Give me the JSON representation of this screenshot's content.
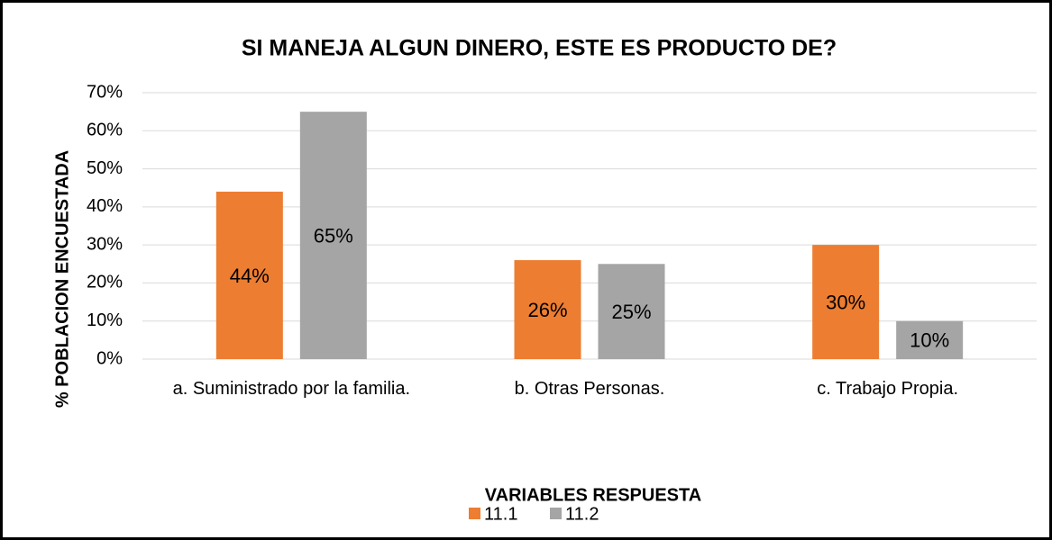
{
  "chart_data": {
    "type": "bar",
    "title": "SI MANEJA ALGUN DINERO, ESTE ES PRODUCTO DE?",
    "x_label": "VARIABLES RESPUESTA",
    "y_label": "% POBLACION ENCUESTADA",
    "categories": [
      "a. Suministrado por la familia.",
      "b. Otras Personas.",
      "c. Trabajo Propia."
    ],
    "series": [
      {
        "name": "11.1",
        "color": "#ED7D31",
        "values": [
          44,
          26,
          30
        ],
        "value_labels": [
          "44%",
          "26%",
          "30%"
        ]
      },
      {
        "name": "11.2",
        "color": "#A5A5A5",
        "values": [
          65,
          25,
          10
        ],
        "value_labels": [
          "65%",
          "25%",
          "10%"
        ]
      }
    ],
    "ylim": [
      0,
      70
    ],
    "yticks": [
      {
        "value": 0,
        "label": "0%"
      },
      {
        "value": 10,
        "label": "10%"
      },
      {
        "value": 20,
        "label": "20%"
      },
      {
        "value": 30,
        "label": "30%"
      },
      {
        "value": 40,
        "label": "40%"
      },
      {
        "value": 50,
        "label": "50%"
      },
      {
        "value": 60,
        "label": "60%"
      },
      {
        "value": 70,
        "label": "70%"
      }
    ],
    "grid": true,
    "legend": "bottom"
  }
}
